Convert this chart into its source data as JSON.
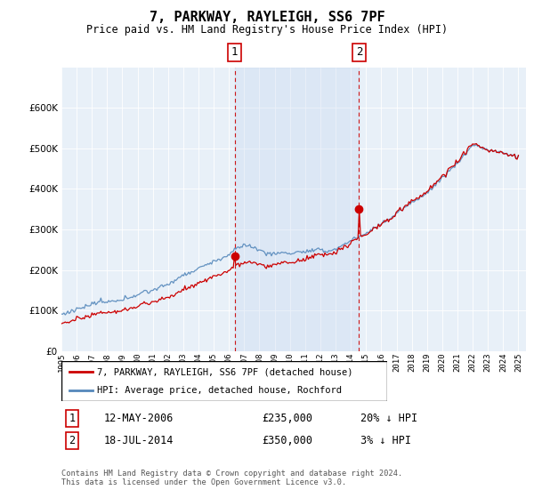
{
  "title": "7, PARKWAY, RAYLEIGH, SS6 7PF",
  "subtitle": "Price paid vs. HM Land Registry's House Price Index (HPI)",
  "legend_line1": "7, PARKWAY, RAYLEIGH, SS6 7PF (detached house)",
  "legend_line2": "HPI: Average price, detached house, Rochford",
  "transaction1_date": "12-MAY-2006",
  "transaction1_price": "£235,000",
  "transaction1_hpi": "20% ↓ HPI",
  "transaction2_date": "18-JUL-2014",
  "transaction2_price": "£350,000",
  "transaction2_hpi": "3% ↓ HPI",
  "footer": "Contains HM Land Registry data © Crown copyright and database right 2024.\nThis data is licensed under the Open Government Licence v3.0.",
  "red_color": "#cc0000",
  "blue_color": "#5588bb",
  "blue_fill": "#ddeeff",
  "vline_color": "#cc0000",
  "bg_color": "#e8f0f8",
  "ylim": [
    0,
    700000
  ],
  "grid_color": "#cccccc"
}
